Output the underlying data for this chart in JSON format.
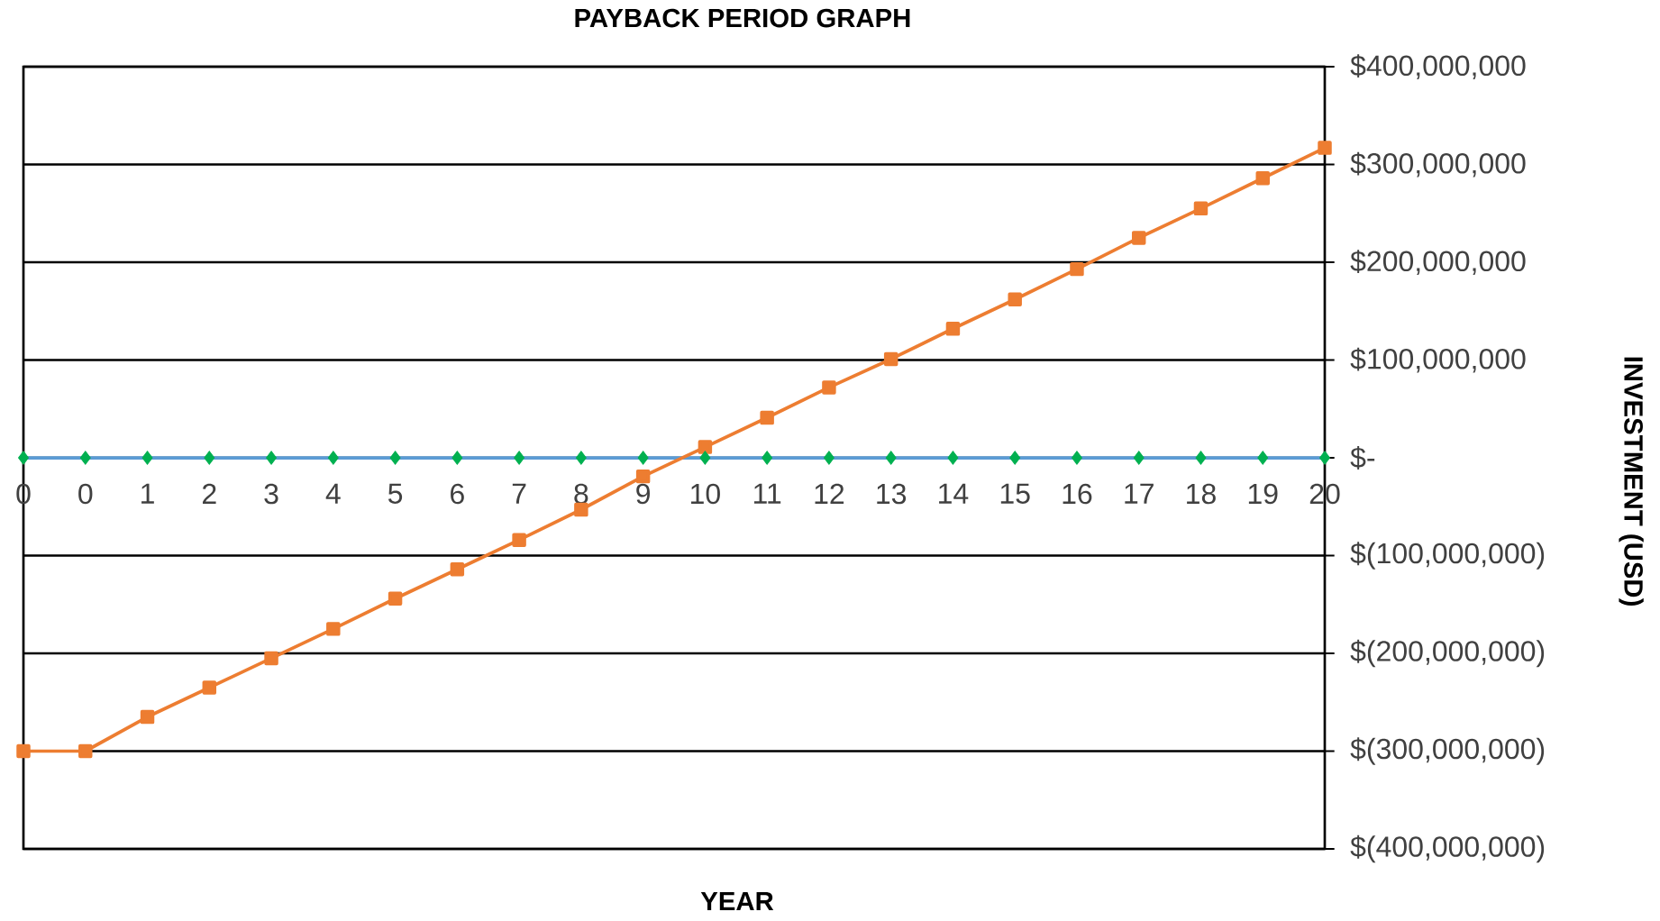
{
  "chart_data": {
    "type": "line",
    "title": "PAYBACK PERIOD GRAPH",
    "xlabel": "YEAR",
    "ylabel": "INVESTMENT (USD)",
    "categories": [
      "0",
      "0",
      "1",
      "2",
      "3",
      "4",
      "5",
      "6",
      "7",
      "8",
      "9",
      "10",
      "11",
      "12",
      "13",
      "14",
      "15",
      "16",
      "17",
      "18",
      "19",
      "20"
    ],
    "series": [
      {
        "color": "#5b9bd5",
        "values": [
          0,
          0,
          0,
          0,
          0,
          0,
          0,
          0,
          0,
          0,
          0,
          0,
          0,
          0,
          0,
          0,
          0,
          0,
          0,
          0,
          0,
          0
        ]
      },
      {
        "color": "#ed7d31",
        "marker": "square",
        "values": [
          -300000000,
          -300000000,
          -265000000,
          -235000000,
          -205000000,
          -175000000,
          -144000000,
          -114000000,
          -84000000,
          -53000000,
          -19000000,
          11000000,
          41000000,
          72000000,
          101000000,
          132000000,
          162000000,
          193000000,
          225000000,
          255000000,
          286000000,
          317000000
        ]
      },
      {
        "type": "scatter",
        "color": "#00b050",
        "marker": "diamond",
        "values": [
          0,
          0,
          0,
          0,
          0,
          0,
          0,
          0,
          0,
          0,
          0,
          0,
          0,
          0,
          0,
          0,
          0,
          0,
          0,
          0,
          0,
          0
        ]
      }
    ],
    "ylim": [
      -400000000,
      400000000
    ],
    "yticks": [
      {
        "value": -400000000,
        "label": "$(400,000,000)"
      },
      {
        "value": -300000000,
        "label": "$(300,000,000)"
      },
      {
        "value": -200000000,
        "label": "$(200,000,000)"
      },
      {
        "value": -100000000,
        "label": "$(100,000,000)"
      },
      {
        "value": 0,
        "label": "$-"
      },
      {
        "value": 100000000,
        "label": "$100,000,000"
      },
      {
        "value": 200000000,
        "label": "$200,000,000"
      },
      {
        "value": 300000000,
        "label": "$300,000,000"
      },
      {
        "value": 400000000,
        "label": "$400,000,000"
      }
    ],
    "grid": "y"
  }
}
